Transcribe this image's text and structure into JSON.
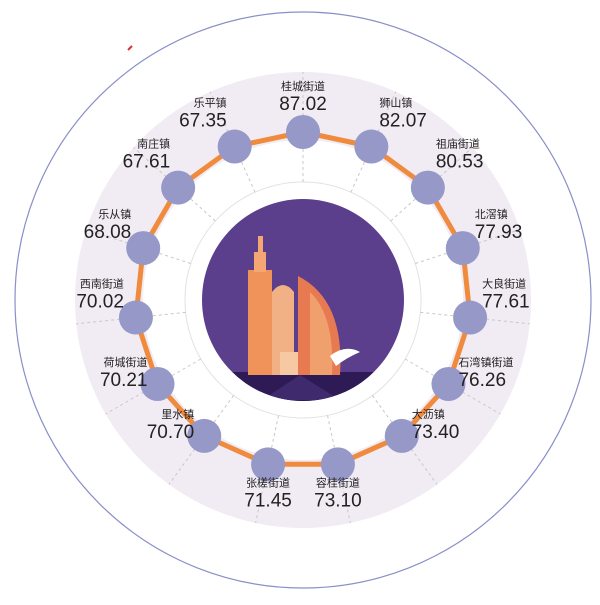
{
  "colors": {
    "outer_ring": "#8a8fc8",
    "band": "#f1ebf4",
    "connector": "#f08a3c",
    "node": "#9698c8",
    "center_bg": "#5b3e8c",
    "spoke": "#c8c8c8",
    "accent_mark": "#e03030"
  },
  "center_icon": "city-skyline-icon",
  "chart_data": {
    "type": "radial-network",
    "title": "",
    "categories": [
      "桂城街道",
      "狮山镇",
      "祖庙街道",
      "北滘镇",
      "大良街道",
      "石湾镇街道",
      "大沥镇",
      "容桂街道",
      "张槎街道",
      "里水镇",
      "荷城街道",
      "西南街道",
      "乐从镇",
      "南庄镇",
      "乐平镇"
    ],
    "values": [
      87.02,
      82.07,
      80.53,
      77.93,
      77.61,
      76.26,
      73.4,
      73.1,
      71.45,
      70.7,
      70.21,
      70.02,
      68.08,
      67.61,
      67.35
    ],
    "value_labels": [
      "87.02",
      "82.07",
      "80.53",
      "77.93",
      "77.61",
      "76.26",
      "73.40",
      "73.10",
      "71.45",
      "70.70",
      "70.21",
      "70.02",
      "68.08",
      "67.61",
      "67.35"
    ]
  }
}
